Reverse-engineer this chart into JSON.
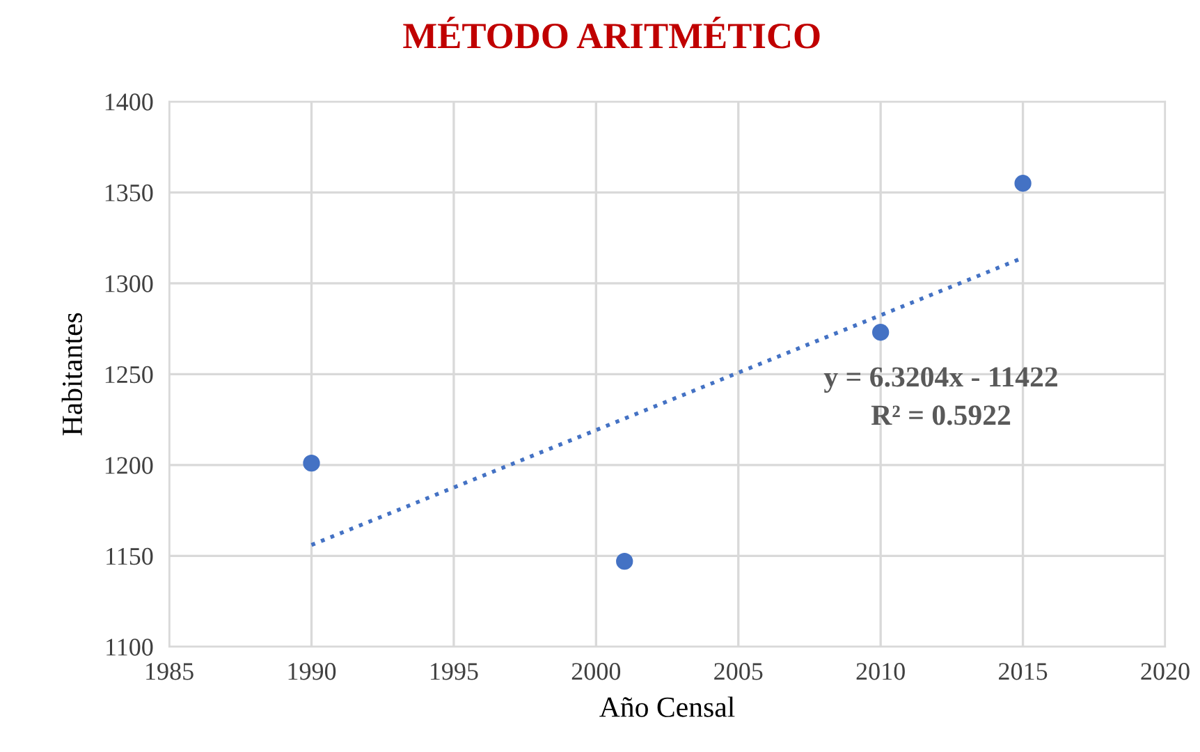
{
  "chart_data": {
    "type": "scatter",
    "title": "MÉTODO ARITMÉTICO",
    "xlabel": "Año Censal",
    "ylabel": "Habitantes",
    "series": [
      {
        "color": "#4472c4",
        "marker": "circle",
        "x": [
          1990,
          2001,
          2010,
          2015
        ],
        "values": [
          1201,
          1147,
          1273,
          1355
        ]
      },
      {
        "type": "line",
        "color": "#4472c4",
        "line_style": "dotted",
        "marker": "none",
        "x": [
          1990,
          2015
        ],
        "values": [
          1156,
          1314
        ]
      }
    ],
    "annotations": [
      "y = 6.3204x - 11422",
      "R² = 0.5922"
    ],
    "xlim": [
      1985,
      2020
    ],
    "xticks": [
      1985,
      1990,
      1995,
      2000,
      2005,
      2010,
      2015,
      2020
    ],
    "ylim": [
      1100,
      1400
    ],
    "yticks": [
      1100,
      1150,
      1200,
      1250,
      1300,
      1350,
      1400
    ],
    "grid": true,
    "legend": false
  }
}
